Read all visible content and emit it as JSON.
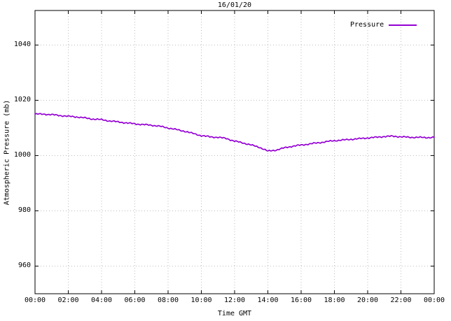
{
  "title": "16/01/20",
  "legend": {
    "label": "Pressure"
  },
  "axes": {
    "y_label": "Atmospheric Pressure (mb)",
    "x_label": "Time GMT"
  },
  "colors": {
    "line": "#9400D3",
    "grid": "#bdbdbd",
    "axis": "#000000",
    "background": "#ffffff"
  },
  "chart_data": {
    "type": "line",
    "title": "16/01/20",
    "xlabel": "Time GMT",
    "ylabel": "Atmospheric Pressure (mb)",
    "grid": true,
    "legend_position": "top-right",
    "x_unit": "hours",
    "xlim": [
      0,
      24
    ],
    "ylim": [
      950,
      1052.5
    ],
    "xticks": [
      0,
      2,
      4,
      6,
      8,
      10,
      12,
      14,
      16,
      18,
      20,
      22,
      24
    ],
    "xtick_labels": [
      "00:00",
      "02:00",
      "04:00",
      "06:00",
      "08:00",
      "10:00",
      "12:00",
      "14:00",
      "16:00",
      "18:00",
      "20:00",
      "22:00",
      "00:00"
    ],
    "yticks": [
      960,
      980,
      1000,
      1020,
      1040
    ],
    "ytick_labels": [
      "960",
      "980",
      "1000",
      "1020",
      "1040"
    ],
    "series": [
      {
        "name": "Pressure",
        "color": "#9400D3",
        "x": [
          0,
          0.5,
          1,
          1.5,
          2,
          2.5,
          3,
          3.5,
          4,
          4.5,
          5,
          5.5,
          6,
          6.5,
          7,
          7.5,
          8,
          8.5,
          9,
          9.5,
          10,
          10.5,
          11,
          11.5,
          12,
          12.5,
          13,
          13.5,
          14,
          14.5,
          15,
          15.5,
          16,
          16.5,
          17,
          17.5,
          18,
          18.5,
          19,
          19.5,
          20,
          20.5,
          21,
          21.5,
          22,
          22.5,
          23,
          23.5,
          24
        ],
        "values": [
          1015.0,
          1015.0,
          1014.8,
          1014.5,
          1014.2,
          1014.0,
          1013.6,
          1013.2,
          1013.0,
          1012.5,
          1012.2,
          1011.8,
          1011.5,
          1011.2,
          1011.0,
          1010.6,
          1010.0,
          1009.4,
          1008.8,
          1008.0,
          1007.2,
          1006.8,
          1006.6,
          1006.2,
          1005.2,
          1004.6,
          1003.8,
          1003.0,
          1001.6,
          1002.0,
          1002.8,
          1003.4,
          1003.8,
          1004.2,
          1004.6,
          1005.0,
          1005.4,
          1005.6,
          1005.9,
          1006.1,
          1006.4,
          1006.6,
          1006.9,
          1007.0,
          1006.8,
          1006.6,
          1006.6,
          1006.5,
          1006.6
        ]
      }
    ]
  }
}
